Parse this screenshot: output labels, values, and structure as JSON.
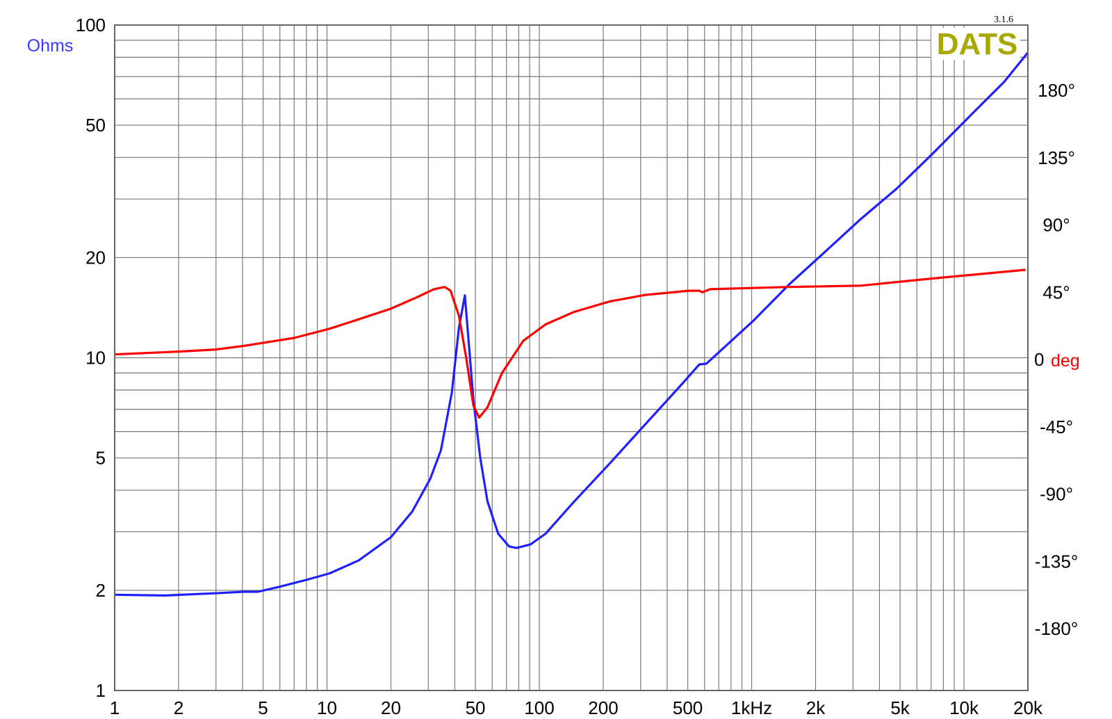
{
  "chart_data": {
    "type": "line",
    "title": "",
    "version": "3.1.6",
    "logo": "DATS",
    "xlabel": "",
    "ylabel_left": "Ohms",
    "ylabel_right": "deg",
    "x_scale": "log",
    "y_left_scale": "log",
    "xlim": [
      1,
      20000
    ],
    "ylim_left": [
      1,
      100
    ],
    "ylim_right": [
      -180,
      180
    ],
    "grid": true,
    "x_ticks": [
      {
        "value": 1,
        "label": "1"
      },
      {
        "value": 2,
        "label": "2"
      },
      {
        "value": 5,
        "label": "5"
      },
      {
        "value": 10,
        "label": "10"
      },
      {
        "value": 20,
        "label": "20"
      },
      {
        "value": 50,
        "label": "50"
      },
      {
        "value": 100,
        "label": "100"
      },
      {
        "value": 200,
        "label": "200"
      },
      {
        "value": 500,
        "label": "500"
      },
      {
        "value": 1000,
        "label": "1kHz"
      },
      {
        "value": 2000,
        "label": "2k"
      },
      {
        "value": 5000,
        "label": "5k"
      },
      {
        "value": 10000,
        "label": "10k"
      },
      {
        "value": 20000,
        "label": "20k"
      }
    ],
    "y_left_ticks": [
      {
        "value": 100,
        "label": "100"
      },
      {
        "value": 50,
        "label": "50"
      },
      {
        "value": 20,
        "label": "20"
      },
      {
        "value": 10,
        "label": "10"
      },
      {
        "value": 5,
        "label": "5"
      },
      {
        "value": 2,
        "label": "2"
      },
      {
        "value": 1,
        "label": "1"
      }
    ],
    "y_right_ticks": [
      {
        "value": 180,
        "label": "180°"
      },
      {
        "value": 135,
        "label": "135°"
      },
      {
        "value": 90,
        "label": "90°"
      },
      {
        "value": 45,
        "label": "45°"
      },
      {
        "value": 0,
        "label": "0"
      },
      {
        "value": -45,
        "label": "-45°"
      },
      {
        "value": -90,
        "label": "-90°"
      },
      {
        "value": -135,
        "label": "-135°"
      },
      {
        "value": -180,
        "label": "-180°"
      }
    ],
    "colors": {
      "impedance": "#2020ff",
      "phase": "#ff0000",
      "logo": "#a8a800",
      "ohms_label": "#3a3aff",
      "grid": "#777777"
    },
    "series": [
      {
        "axis": "left",
        "color": "#2020ff",
        "x": [
          1,
          1.72,
          2.97,
          4.05,
          4.73,
          5.98,
          8.2,
          10.3,
          14.1,
          20,
          25.2,
          30.6,
          34.4,
          38.7,
          41.8,
          44.6,
          48.9,
          52.7,
          57,
          64,
          72,
          78,
          91,
          107,
          145,
          215,
          316,
          466,
          567,
          612,
          1016,
          1500,
          2212,
          3263,
          4810,
          7100,
          10480,
          15460,
          20000
        ],
        "y": [
          1.94,
          1.93,
          1.96,
          1.98,
          1.98,
          2.05,
          2.16,
          2.25,
          2.46,
          2.89,
          3.45,
          4.32,
          5.27,
          7.85,
          12.3,
          15.4,
          7.5,
          5.0,
          3.7,
          2.96,
          2.71,
          2.68,
          2.75,
          2.96,
          3.68,
          4.82,
          6.32,
          8.29,
          9.55,
          9.6,
          12.9,
          16.6,
          20.8,
          26.1,
          32.2,
          41,
          52.7,
          67.5,
          82.7
        ]
      },
      {
        "axis": "right",
        "color": "#ff0000",
        "x": [
          1,
          2,
          3,
          4.05,
          7,
          10.3,
          14.1,
          20,
          26.2,
          31.9,
          35.8,
          38.2,
          41.8,
          45.3,
          48.9,
          52,
          57,
          66.7,
          84,
          107,
          145,
          215,
          316,
          505,
          567,
          587,
          637,
          1500,
          3263,
          7100,
          19500
        ],
        "y": [
          3.4,
          5.3,
          6.7,
          9.1,
          14.4,
          20.6,
          26.9,
          34,
          41.3,
          47,
          48.5,
          46,
          29.3,
          0.5,
          -30.7,
          -38.9,
          -32,
          -9,
          12.5,
          23.5,
          31.7,
          38.9,
          43.2,
          46,
          46,
          45,
          47,
          48.5,
          49.4,
          54.2,
          60
        ]
      }
    ]
  }
}
